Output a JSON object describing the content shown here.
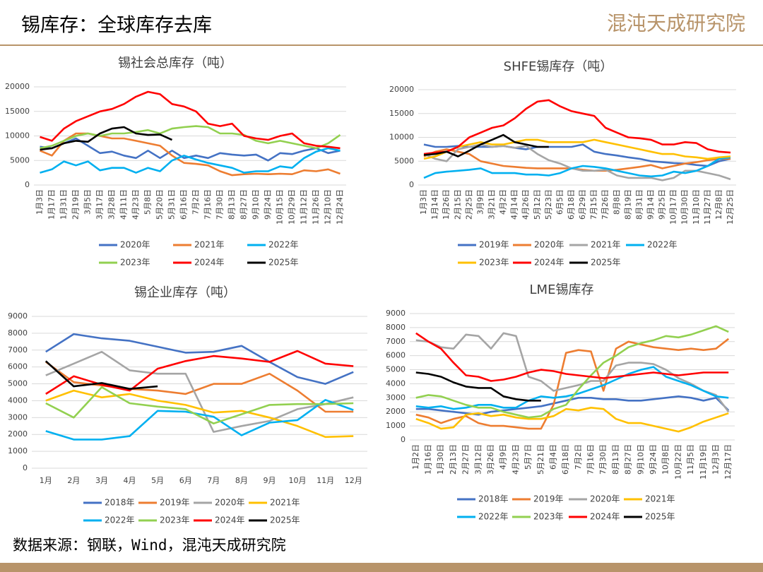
{
  "header": {
    "title": "锡库存：全球库存去库",
    "logo": "混沌天成研究院"
  },
  "footer": {
    "source": "数据来源：钢联，Wind，混沌天成研究院"
  },
  "chart_data": [
    {
      "type": "line",
      "title": "锡社会总库存（吨）",
      "categories": [
        "1月3日",
        "1月17日",
        "1月31日",
        "2月19日",
        "3月5日",
        "3月17日",
        "3月28日",
        "4月11日",
        "4月23日",
        "5月8日",
        "5月20日",
        "5月31日",
        "6月16日",
        "7月2日",
        "7月16日",
        "7月30日",
        "8月13日",
        "8月27日",
        "9月10日",
        "9月24日",
        "10月15日",
        "10月29日",
        "11月12日",
        "11月26日",
        "12月10日",
        "12月24日"
      ],
      "ylim": [
        0,
        20000
      ],
      "yticks": [
        0,
        5000,
        10000,
        15000,
        20000
      ],
      "series": [
        {
          "name": "2020年",
          "color": "#4472c4",
          "values": [
            7800,
            7500,
            8500,
            9500,
            8000,
            6500,
            6800,
            6000,
            5500,
            7000,
            5500,
            7000,
            5500,
            6000,
            5500,
            6500,
            6200,
            6000,
            6200,
            5000,
            6500,
            6300,
            7000,
            7500,
            6500,
            7000
          ]
        },
        {
          "name": "2021年",
          "color": "#ed7d31",
          "values": [
            7000,
            6000,
            9000,
            10500,
            10500,
            10000,
            9500,
            9500,
            9000,
            8500,
            8000,
            6000,
            4500,
            4300,
            4000,
            2800,
            2000,
            2200,
            2300,
            2200,
            2300,
            2200,
            3000,
            2800,
            3200,
            2300
          ]
        },
        {
          "name": "2022年",
          "color": "#00b0f0",
          "values": [
            2500,
            3200,
            4800,
            4000,
            4800,
            3000,
            3500,
            3500,
            2500,
            3500,
            2800,
            5000,
            6000,
            5200,
            4500,
            4000,
            3500,
            2500,
            2800,
            2800,
            3800,
            3500,
            5500,
            6800,
            7500,
            7000
          ]
        },
        {
          "name": "2023年",
          "color": "#92d050",
          "values": [
            7500,
            8000,
            9000,
            10000,
            10500,
            10000,
            10500,
            10500,
            10800,
            11200,
            10500,
            11500,
            11800,
            12000,
            11800,
            10500,
            10500,
            10200,
            9000,
            8500,
            9000,
            8500,
            8000,
            7500,
            8500,
            10200
          ]
        },
        {
          "name": "2024年",
          "color": "#ff0000",
          "values": [
            9800,
            9000,
            11500,
            13000,
            14000,
            15000,
            15500,
            16500,
            18000,
            19000,
            18500,
            16500,
            16000,
            15000,
            12500,
            12000,
            12500,
            10000,
            9500,
            9200,
            10000,
            10500,
            8500,
            8000,
            7800,
            7500
          ]
        },
        {
          "name": "2025年",
          "color": "#000000",
          "values": [
            7200,
            7500,
            8500,
            9000,
            8800,
            10500,
            11500,
            11800,
            10500,
            10200,
            10300,
            9200,
            null,
            null,
            null,
            null,
            null,
            null,
            null,
            null,
            null,
            null,
            null,
            null,
            null,
            null
          ]
        }
      ]
    },
    {
      "type": "line",
      "title": "SHFE锡库存（吨）",
      "categories": [
        "1月3日",
        "1月14日",
        "1月26日",
        "2月15日",
        "2月25日",
        "3月9日",
        "3月21日",
        "4月2日",
        "4月14日",
        "4月26日",
        "5月12日",
        "5月23日",
        "6月5日",
        "6月18日",
        "6月29日",
        "7月15日",
        "7月26日",
        "8月8日",
        "8月19日",
        "8月31日",
        "9月14日",
        "9月25日",
        "10月17日",
        "10月30日",
        "11月10日",
        "11月27日",
        "12月8日",
        "12月25日"
      ],
      "ylim": [
        0,
        20000
      ],
      "yticks": [
        0,
        5000,
        10000,
        15000,
        20000
      ],
      "series": [
        {
          "name": "2019年",
          "color": "#4472c4",
          "values": [
            8500,
            8000,
            8000,
            8200,
            8000,
            8000,
            8000,
            8200,
            7800,
            7500,
            8000,
            8000,
            8000,
            8000,
            8500,
            7000,
            6500,
            6200,
            5800,
            5500,
            5000,
            4800,
            4600,
            4500,
            4200,
            4000,
            5000,
            5500
          ]
        },
        {
          "name": "2020年",
          "color": "#ed7d31",
          "values": [
            6000,
            7000,
            7500,
            7000,
            6500,
            5000,
            4500,
            4000,
            3800,
            3600,
            3500,
            3500,
            3500,
            3500,
            3200,
            3000,
            3000,
            3200,
            3500,
            3800,
            4200,
            3500,
            4000,
            4500,
            4800,
            5200,
            5500,
            5500
          ]
        },
        {
          "name": "2021年",
          "color": "#a5a5a5",
          "values": [
            6500,
            5500,
            5000,
            7500,
            8000,
            8500,
            8000,
            8200,
            7800,
            8200,
            6500,
            5200,
            4500,
            3500,
            3000,
            3000,
            3200,
            2000,
            1500,
            1500,
            1500,
            1000,
            1500,
            3000,
            3000,
            2500,
            2000,
            1200
          ]
        },
        {
          "name": "2022年",
          "color": "#00b0f0",
          "values": [
            1500,
            2500,
            2800,
            3000,
            3200,
            3500,
            2500,
            2500,
            2500,
            2200,
            2200,
            2000,
            2500,
            3500,
            4000,
            3800,
            3500,
            3000,
            2500,
            2000,
            1800,
            2000,
            2800,
            2500,
            3000,
            4000,
            5500,
            5800
          ]
        },
        {
          "name": "2023年",
          "color": "#ffc000",
          "values": [
            5500,
            6000,
            7000,
            8000,
            8500,
            9000,
            8500,
            8500,
            9000,
            9500,
            9500,
            9000,
            9000,
            9000,
            9000,
            9500,
            9000,
            8500,
            8000,
            7500,
            7000,
            6500,
            6500,
            6000,
            5800,
            5500,
            5800,
            6000
          ]
        },
        {
          "name": "2024年",
          "color": "#ff0000",
          "values": [
            6500,
            6800,
            7000,
            8000,
            10000,
            11000,
            12000,
            12500,
            14000,
            16000,
            17500,
            17800,
            16500,
            15500,
            15000,
            14500,
            12000,
            11000,
            10000,
            9800,
            9500,
            8500,
            8500,
            9000,
            8800,
            7500,
            7000,
            6800
          ]
        },
        {
          "name": "2025年",
          "color": "#000000",
          "values": [
            6300,
            6500,
            7000,
            6000,
            7200,
            8500,
            9500,
            10500,
            9000,
            8500,
            8000,
            8000,
            null,
            null,
            null,
            null,
            null,
            null,
            null,
            null,
            null,
            null,
            null,
            null,
            null,
            null,
            null,
            null
          ]
        }
      ]
    },
    {
      "type": "line",
      "title": "锡企业库存（吨）",
      "categories": [
        "1月",
        "2月",
        "3月",
        "4月",
        "5月",
        "6月",
        "7月",
        "8月",
        "9月",
        "10月",
        "11月",
        "12月"
      ],
      "ylim": [
        0,
        9000
      ],
      "yticks": [
        0,
        1000,
        2000,
        3000,
        4000,
        5000,
        6000,
        7000,
        8000,
        9000
      ],
      "series": [
        {
          "name": "2018年",
          "color": "#4472c4",
          "values": [
            6900,
            7950,
            7700,
            7550,
            7200,
            6850,
            6900,
            7250,
            6300,
            5400,
            5000,
            5700
          ]
        },
        {
          "name": "2019年",
          "color": "#ed7d31",
          "values": [
            6300,
            5100,
            4900,
            4700,
            4600,
            4400,
            5000,
            5000,
            5600,
            4600,
            3350,
            3350
          ]
        },
        {
          "name": "2020年",
          "color": "#a5a5a5",
          "values": [
            5500,
            6200,
            6900,
            5800,
            5600,
            5600,
            2150,
            2500,
            2800,
            3500,
            3800,
            4200
          ]
        },
        {
          "name": "2021年",
          "color": "#ffc000",
          "values": [
            4000,
            4600,
            4200,
            4400,
            4000,
            3750,
            3300,
            3400,
            3000,
            2500,
            1850,
            1900
          ]
        },
        {
          "name": "2022年",
          "color": "#00b0f0",
          "values": [
            2200,
            1700,
            1700,
            1900,
            3400,
            3350,
            3050,
            1950,
            2700,
            2850,
            4050,
            3450
          ]
        },
        {
          "name": "2023年",
          "color": "#92d050",
          "values": [
            3850,
            3000,
            4800,
            3850,
            3650,
            3500,
            2650,
            3200,
            3750,
            3800,
            3800,
            3850
          ]
        },
        {
          "name": "2024年",
          "color": "#ff0000",
          "values": [
            4400,
            5450,
            4950,
            4600,
            5900,
            6350,
            6650,
            6500,
            6300,
            6950,
            6200,
            6050
          ]
        },
        {
          "name": "2025年",
          "color": "#000000",
          "values": [
            6350,
            4850,
            5050,
            4700,
            4850,
            null,
            null,
            null,
            null,
            null,
            null,
            null
          ]
        }
      ]
    },
    {
      "type": "line",
      "title": "LME锡库存",
      "categories": [
        "1月2日",
        "1月16日",
        "1月30日",
        "2月13日",
        "2月27日",
        "3月12日",
        "3月26日",
        "4月9日",
        "4月23日",
        "5月7日",
        "5月21日",
        "6月4日",
        "6月18日",
        "7月2日",
        "7月16日",
        "7月30日",
        "8月13日",
        "8月27日",
        "9月10日",
        "9月24日",
        "10月8日",
        "10月22日",
        "11月5日",
        "11月19日",
        "12月3日",
        "12月17日"
      ],
      "ylim": [
        0,
        9000
      ],
      "yticks": [
        0,
        1000,
        2000,
        3000,
        4000,
        5000,
        6000,
        7000,
        8000,
        9000
      ],
      "series": [
        {
          "name": "2018年",
          "color": "#4472c4",
          "values": [
            2200,
            2200,
            2100,
            2000,
            1900,
            1800,
            2000,
            2100,
            2200,
            2300,
            2400,
            2600,
            2800,
            3000,
            3000,
            2900,
            2900,
            2800,
            2800,
            2900,
            3000,
            3100,
            3000,
            2800,
            3000,
            2100
          ]
        },
        {
          "name": "2019年",
          "color": "#ed7d31",
          "values": [
            1800,
            1600,
            1200,
            1500,
            1700,
            1200,
            1000,
            1000,
            900,
            800,
            800,
            2500,
            6200,
            6400,
            6300,
            3500,
            6500,
            7000,
            6800,
            6600,
            6500,
            6400,
            6500,
            6400,
            6500,
            7200
          ]
        },
        {
          "name": "2020年",
          "color": "#a5a5a5",
          "values": [
            7100,
            7000,
            6600,
            6500,
            7500,
            7400,
            6500,
            7600,
            7400,
            4500,
            4200,
            3500,
            3700,
            3900,
            4200,
            4200,
            5300,
            5500,
            5500,
            5400,
            5000,
            4400,
            4000,
            3500,
            3200,
            2000
          ]
        },
        {
          "name": "2021年",
          "color": "#ffc000",
          "values": [
            1500,
            1200,
            800,
            900,
            1800,
            1900,
            1700,
            1800,
            1600,
            1500,
            1500,
            1700,
            2200,
            2100,
            2300,
            2200,
            1500,
            1200,
            1200,
            1000,
            800,
            600,
            900,
            1300,
            1600,
            1900
          ]
        },
        {
          "name": "2022年",
          "color": "#00b0f0",
          "values": [
            2400,
            2300,
            2400,
            2200,
            2300,
            2500,
            2500,
            2300,
            2300,
            2800,
            3100,
            3000,
            3100,
            3300,
            3600,
            3900,
            4300,
            4700,
            5000,
            5200,
            4500,
            4200,
            3900,
            3500,
            3100,
            3000
          ]
        },
        {
          "name": "2023年",
          "color": "#92d050",
          "values": [
            3000,
            3200,
            3100,
            2800,
            2500,
            2300,
            2300,
            2000,
            1800,
            1600,
            1700,
            2200,
            2500,
            3600,
            4600,
            5500,
            6000,
            6600,
            6900,
            7100,
            7400,
            7300,
            7500,
            7800,
            8100,
            7700
          ]
        },
        {
          "name": "2024年",
          "color": "#ff0000",
          "values": [
            7600,
            7000,
            6500,
            5500,
            4600,
            4500,
            4200,
            4300,
            4500,
            4800,
            5000,
            4900,
            4700,
            4600,
            4500,
            4400,
            4500,
            4600,
            4700,
            4800,
            4700,
            4600,
            4700,
            4800,
            4800,
            4800
          ]
        },
        {
          "name": "2025年",
          "color": "#000000",
          "values": [
            4800,
            4700,
            4500,
            4100,
            3800,
            3700,
            3700,
            3100,
            2900,
            2800,
            2800,
            null,
            null,
            null,
            null,
            null,
            null,
            null,
            null,
            null,
            null,
            null,
            null,
            null,
            null,
            null
          ]
        }
      ]
    }
  ]
}
